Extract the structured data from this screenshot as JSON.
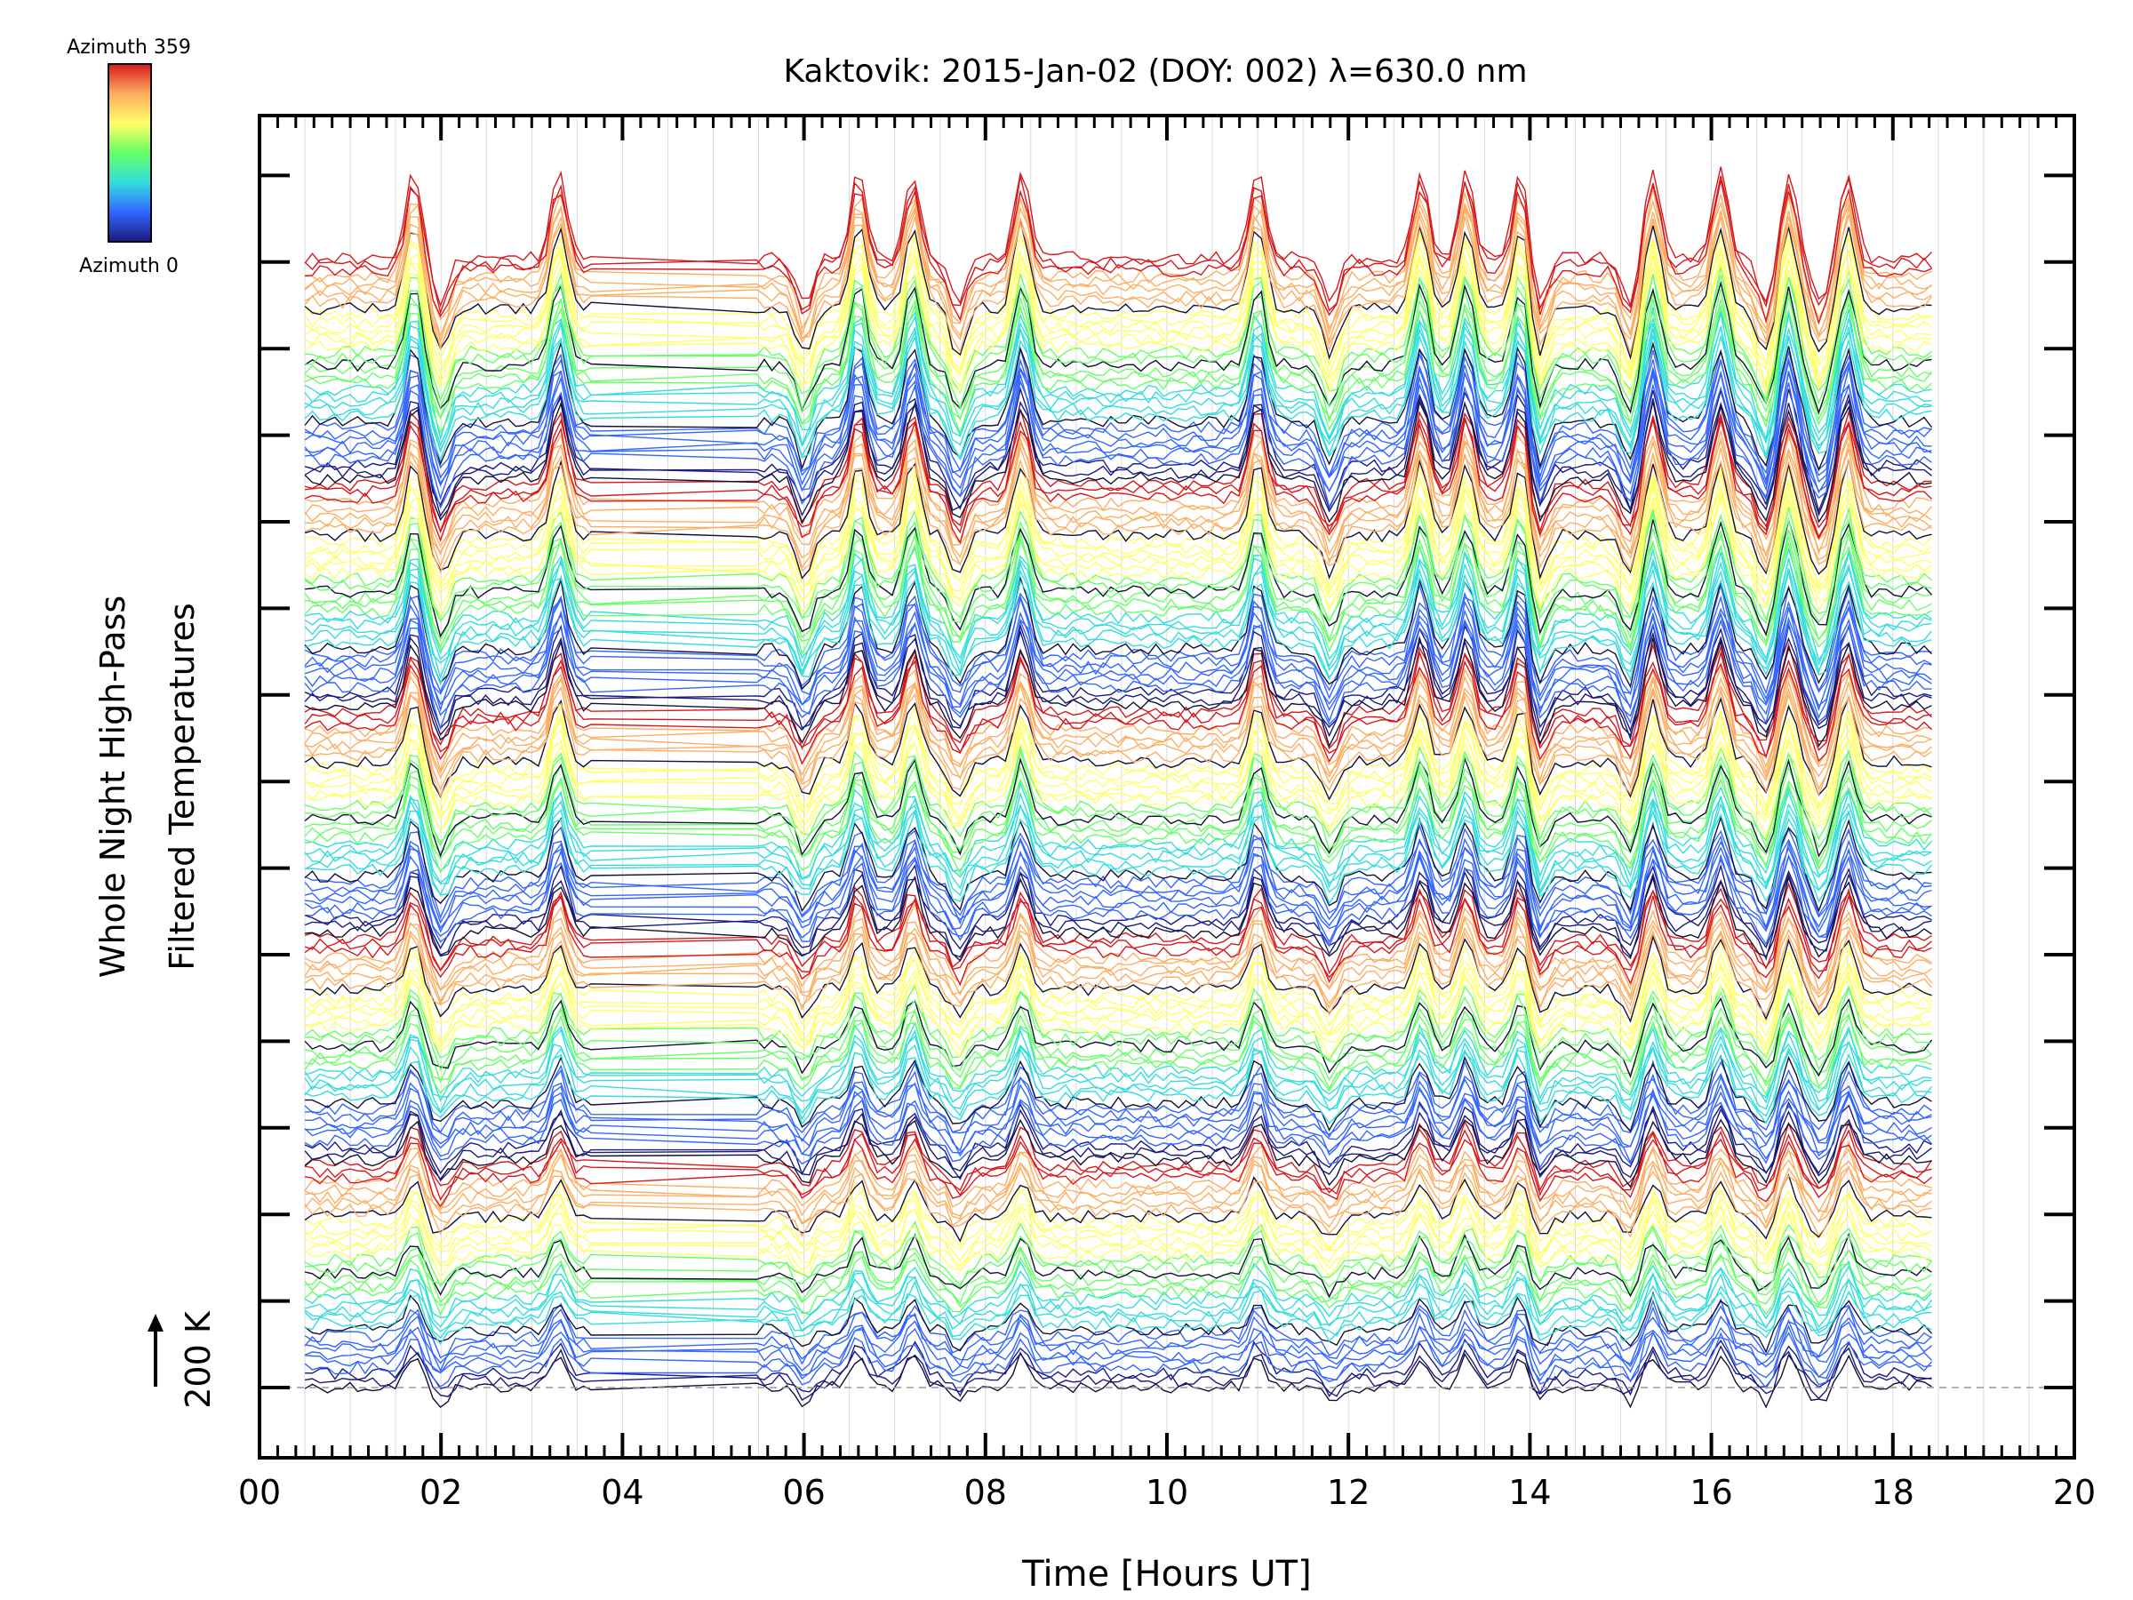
{
  "chart_data": {
    "type": "line",
    "title": "Kaktovik: 2015-Jan-02 (DOY: 002) λ=630.0 nm",
    "xlabel": "Time [Hours UT]",
    "ylabel_line1": "Whole Night High-Pass",
    "ylabel_line2": "Filtered Temperatures",
    "scale_label": "200 K",
    "xlim": [
      0,
      20
    ],
    "x_ticks": [
      "00",
      "02",
      "04",
      "06",
      "08",
      "10",
      "12",
      "14",
      "16",
      "18",
      "20"
    ],
    "x_tick_values": [
      0,
      2,
      4,
      6,
      8,
      10,
      12,
      14,
      16,
      18,
      20
    ],
    "grid": true,
    "colorbar": {
      "top_label": "Azimuth 359",
      "bottom_label": "Azimuth 0",
      "colormap": [
        "#d7191c",
        "#fdae61",
        "#ffff66",
        "#66ff66",
        "#33dddd",
        "#3366ff",
        "#1a1a80"
      ]
    },
    "series_count": 180,
    "time_span": [
      0.5,
      18.45
    ],
    "peak_times": [
      1.7,
      3.3,
      6.6,
      7.2,
      8.4,
      11.0,
      12.8,
      13.3,
      13.9,
      15.35,
      16.1,
      16.85,
      17.5
    ],
    "dip_times": [
      2.0,
      6.0,
      7.7,
      11.8,
      14.1,
      15.1,
      16.6,
      17.2
    ]
  }
}
